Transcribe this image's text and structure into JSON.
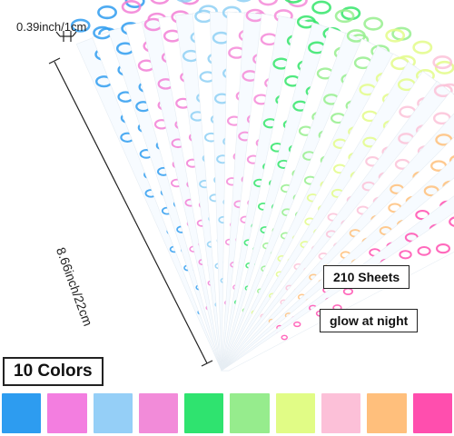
{
  "dimensions": {
    "width_text": "0.39inch/1cm",
    "length_text": "8.66inch/22cm"
  },
  "badges": {
    "sheets": "210 Sheets",
    "glow": "glow at night",
    "colors": "10 Colors"
  },
  "strip_colors": [
    "#2f9cf0",
    "#f27fd6",
    "#8fd0f5",
    "#f48ad8",
    "#34e56a",
    "#97ee8e",
    "#e3fb8a",
    "#fbc2d8",
    "#ffc07a",
    "#ff4fb0"
  ],
  "swatches": [
    {
      "color": "#2d9cf0"
    },
    {
      "color": "#f37ee0"
    },
    {
      "color": "#95cff7"
    },
    {
      "color": "#f28bd9"
    },
    {
      "color": "#2fe36f"
    },
    {
      "color": "#96ec8d"
    },
    {
      "color": "#e1fc86"
    },
    {
      "color": "#fcc0d8"
    },
    {
      "color": "#ffbf7c"
    },
    {
      "color": "#ff4eae"
    }
  ]
}
